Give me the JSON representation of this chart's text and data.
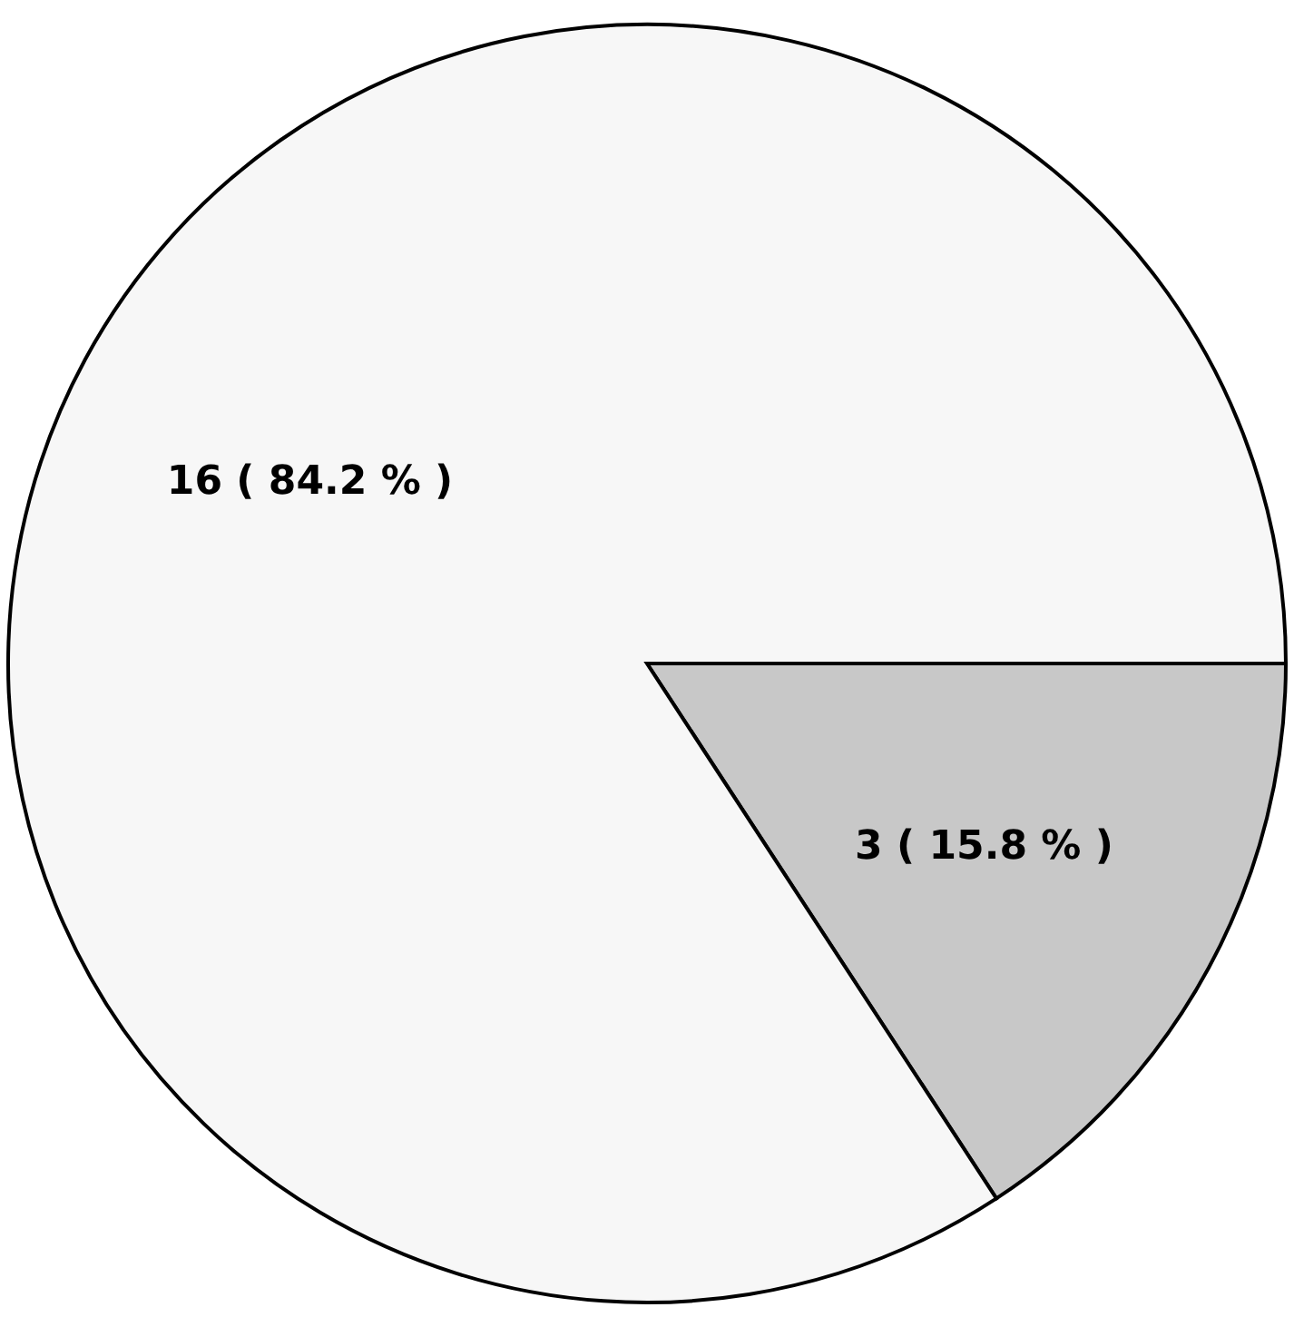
{
  "chart_data": {
    "type": "pie",
    "categories": [
      null,
      null
    ],
    "values": [
      3,
      16
    ],
    "colors": [
      "#c8c8c8",
      "#f7f7f7"
    ],
    "value_labels": [
      "3 ( 15.8 % )",
      "16 ( 84.2 % )"
    ]
  }
}
